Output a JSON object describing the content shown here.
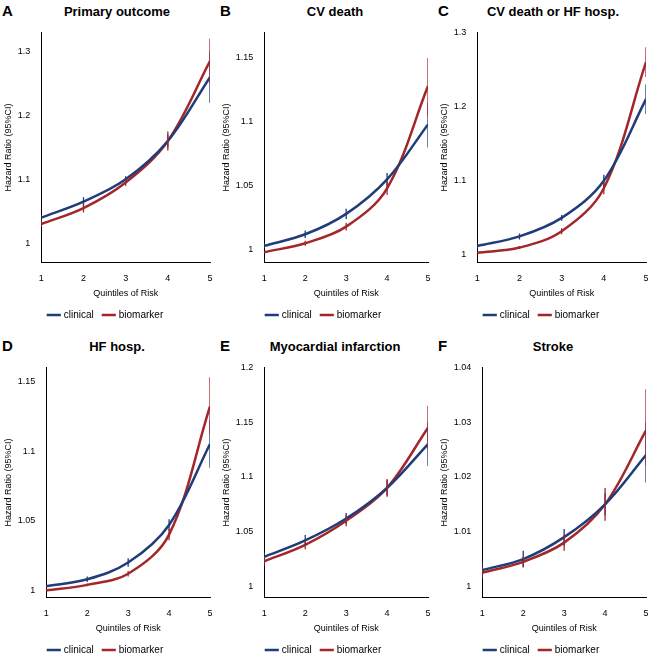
{
  "chart_data": [
    {
      "panel": "A",
      "type": "line",
      "title": "Primary outcome",
      "x_label": "Quintiles of Risk",
      "y_label": "Hazard Ratio (95%CI)",
      "categories": [
        "1",
        "2",
        "3",
        "4",
        "5"
      ],
      "ylim": [
        0.97,
        1.33
      ],
      "yticks": [
        1,
        1.1,
        1.2,
        1.3
      ],
      "grid": false,
      "legend": "bottom",
      "series": [
        {
          "name": "clinical",
          "color": "#1f3d7a",
          "values": [
            1.04,
            1.065,
            1.1,
            1.16,
            1.26
          ],
          "lower": [
            1.035,
            1.058,
            1.095,
            1.15,
            1.22
          ],
          "upper": [
            1.045,
            1.072,
            1.105,
            1.17,
            1.3
          ]
        },
        {
          "name": "biomarker",
          "color": "#a3262a",
          "values": [
            1.03,
            1.055,
            1.095,
            1.16,
            1.285
          ],
          "lower": [
            1.025,
            1.048,
            1.09,
            1.145,
            1.25
          ],
          "upper": [
            1.035,
            1.062,
            1.1,
            1.175,
            1.32
          ]
        }
      ]
    },
    {
      "panel": "B",
      "type": "line",
      "title": "CV death",
      "x_label": "Quintiles of Risk",
      "y_label": "Hazard Ratio (95%CI)",
      "categories": [
        "1",
        "2",
        "3",
        "4",
        "5"
      ],
      "ylim": [
        0.99,
        1.17
      ],
      "yticks": [
        1,
        1.05,
        1.1,
        1.15
      ],
      "grid": false,
      "legend": "bottom",
      "series": [
        {
          "name": "clinical",
          "color": "#1f3d7a",
          "values": [
            1.003,
            1.012,
            1.028,
            1.055,
            1.098
          ],
          "lower": [
            1.001,
            1.009,
            1.024,
            1.05,
            1.08
          ],
          "upper": [
            1.005,
            1.015,
            1.032,
            1.06,
            1.115
          ]
        },
        {
          "name": "biomarker",
          "color": "#a3262a",
          "values": [
            0.998,
            1.005,
            1.018,
            1.048,
            1.128
          ],
          "lower": [
            0.997,
            1.003,
            1.015,
            1.043,
            1.105
          ],
          "upper": [
            0.999,
            1.007,
            1.021,
            1.053,
            1.15
          ]
        }
      ]
    },
    {
      "panel": "C",
      "type": "line",
      "title": "CV death or HF hosp.",
      "x_label": "Quintiles of Risk",
      "y_label": "Hazard Ratio (95%CI)",
      "categories": [
        "1",
        "2",
        "3",
        "4",
        "5"
      ],
      "ylim": [
        0.99,
        1.3
      ],
      "yticks": [
        1,
        1.1,
        1.2,
        1.3
      ],
      "grid": false,
      "legend": "bottom",
      "series": [
        {
          "name": "clinical",
          "color": "#1f3d7a",
          "values": [
            1.012,
            1.025,
            1.05,
            1.1,
            1.21
          ],
          "lower": [
            1.009,
            1.021,
            1.046,
            1.092,
            1.19
          ],
          "upper": [
            1.015,
            1.029,
            1.054,
            1.108,
            1.23
          ]
        },
        {
          "name": "biomarker",
          "color": "#a3262a",
          "values": [
            1.003,
            1.01,
            1.032,
            1.09,
            1.26
          ],
          "lower": [
            1.002,
            1.008,
            1.028,
            1.082,
            1.24
          ],
          "upper": [
            1.004,
            1.012,
            1.036,
            1.098,
            1.28
          ]
        }
      ]
    },
    {
      "panel": "D",
      "type": "line",
      "title": "HF hosp.",
      "x_label": "Quintiles of Risk",
      "y_label": "Hazard Ratio (95%CI)",
      "categories": [
        "1",
        "2",
        "3",
        "4",
        "5"
      ],
      "ylim": [
        0.995,
        1.16
      ],
      "yticks": [
        1,
        1.05,
        1.1,
        1.15
      ],
      "grid": false,
      "legend": "bottom",
      "series": [
        {
          "name": "clinical",
          "color": "#1f3d7a",
          "values": [
            1.003,
            1.008,
            1.02,
            1.047,
            1.105
          ],
          "lower": [
            1.002,
            1.006,
            1.017,
            1.043,
            1.088
          ],
          "upper": [
            1.004,
            1.01,
            1.023,
            1.051,
            1.122
          ]
        },
        {
          "name": "biomarker",
          "color": "#a3262a",
          "values": [
            1.0,
            1.004,
            1.012,
            1.04,
            1.132
          ],
          "lower": [
            0.999,
            1.003,
            1.01,
            1.036,
            1.112
          ],
          "upper": [
            1.001,
            1.005,
            1.014,
            1.044,
            1.153
          ]
        }
      ]
    },
    {
      "panel": "E",
      "type": "line",
      "title": "Myocardial infarction",
      "x_label": "Quintiles of Risk",
      "y_label": "Hazard Ratio (95%CI)",
      "categories": [
        "1",
        "2",
        "3",
        "4",
        "5"
      ],
      "ylim": [
        0.99,
        1.2
      ],
      "yticks": [
        1,
        1.05,
        1.1,
        1.15,
        1.2
      ],
      "grid": false,
      "legend": "bottom",
      "series": [
        {
          "name": "clinical",
          "color": "#1f3d7a",
          "values": [
            1.027,
            1.042,
            1.062,
            1.09,
            1.13
          ],
          "lower": [
            1.022,
            1.037,
            1.057,
            1.083,
            1.11
          ],
          "upper": [
            1.032,
            1.047,
            1.067,
            1.097,
            1.15
          ]
        },
        {
          "name": "biomarker",
          "color": "#a3262a",
          "values": [
            1.023,
            1.038,
            1.06,
            1.09,
            1.145
          ],
          "lower": [
            1.019,
            1.034,
            1.055,
            1.082,
            1.125
          ],
          "upper": [
            1.027,
            1.042,
            1.065,
            1.098,
            1.165
          ]
        }
      ]
    },
    {
      "panel": "F",
      "type": "line",
      "title": "Stroke",
      "x_label": "Quintiles of Risk",
      "y_label": "Hazard Ratio (95%CI)",
      "categories": [
        "1",
        "2",
        "3",
        "4",
        "5"
      ],
      "ylim": [
        0.998,
        1.04
      ],
      "yticks": [
        1,
        1.01,
        1.02,
        1.03,
        1.04
      ],
      "grid": false,
      "legend": "bottom",
      "series": [
        {
          "name": "clinical",
          "color": "#1f3d7a",
          "values": [
            1.003,
            1.005,
            1.009,
            1.015,
            1.024
          ],
          "lower": [
            1.0015,
            1.0035,
            1.0075,
            1.013,
            1.019
          ],
          "upper": [
            1.0045,
            1.0065,
            1.0105,
            1.017,
            1.03
          ]
        },
        {
          "name": "biomarker",
          "color": "#a3262a",
          "values": [
            1.0025,
            1.0045,
            1.008,
            1.015,
            1.0285
          ],
          "lower": [
            1.0015,
            1.0035,
            1.0065,
            1.012,
            1.022
          ],
          "upper": [
            1.0035,
            1.0055,
            1.0095,
            1.018,
            1.036
          ]
        }
      ]
    }
  ]
}
